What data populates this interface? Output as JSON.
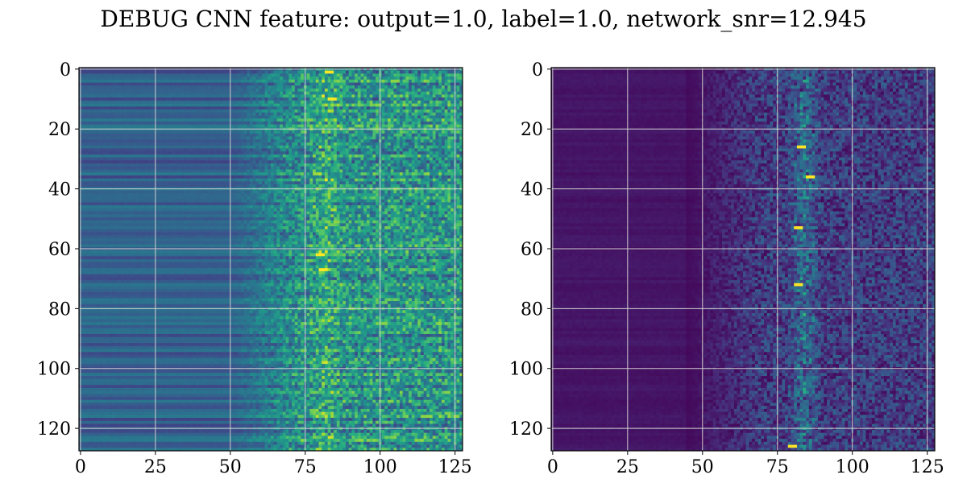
{
  "figure": {
    "title": "DEBUG CNN feature: output=1.0, label=1.0, network_snr=12.945"
  },
  "chart_data": [
    {
      "type": "heatmap",
      "title": "",
      "xlabel": "",
      "ylabel": "",
      "rows": 128,
      "cols": 128,
      "xlim": [
        -0.5,
        127.5
      ],
      "ylim": [
        127.5,
        -0.5
      ],
      "xticks": [
        0,
        25,
        50,
        75,
        100,
        125
      ],
      "yticks": [
        0,
        20,
        40,
        60,
        80,
        100,
        120
      ],
      "grid": true,
      "colormap": "viridis",
      "colorbar": false,
      "pattern": {
        "left_region_value": 0.3,
        "noise_onset_col": 50,
        "bright_feature_col": 82,
        "bright_spots": [
          [
            62,
            80
          ],
          [
            67,
            81
          ],
          [
            10,
            84
          ],
          [
            1,
            83
          ]
        ]
      }
    },
    {
      "type": "heatmap",
      "title": "",
      "xlabel": "",
      "ylabel": "",
      "rows": 128,
      "cols": 128,
      "xlim": [
        -0.5,
        127.5
      ],
      "ylim": [
        127.5,
        -0.5
      ],
      "xticks": [
        0,
        25,
        50,
        75,
        100,
        125
      ],
      "yticks": [
        0,
        20,
        40,
        60,
        80,
        100,
        120
      ],
      "grid": true,
      "colormap": "viridis",
      "colorbar": false,
      "pattern": {
        "left_region_value": 0.05,
        "noise_onset_col": 45,
        "bright_feature_col": 84,
        "bright_spots": [
          [
            72,
            82
          ],
          [
            36,
            86
          ],
          [
            126,
            80
          ],
          [
            26,
            83
          ],
          [
            53,
            82
          ]
        ]
      }
    }
  ],
  "colors": {
    "grid": "#d0d0d0",
    "axes": "#000000",
    "background": "#ffffff"
  }
}
